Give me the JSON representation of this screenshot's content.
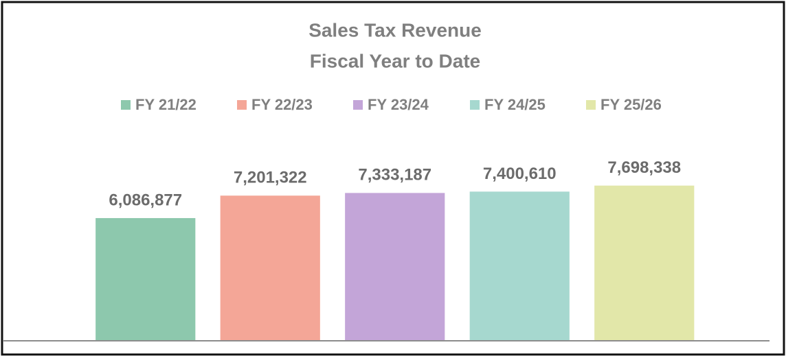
{
  "chart_data": {
    "type": "bar",
    "title": "Sales Tax Revenue",
    "subtitle": "Fiscal Year to Date",
    "series": [
      {
        "name": "FY 21/22",
        "color": "#8dc8ad",
        "values": [
          6086877
        ],
        "value_labels": [
          "6,086,877"
        ]
      },
      {
        "name": "FY 22/23",
        "color": "#f4a697",
        "values": [
          7201322
        ],
        "value_labels": [
          "7,201,322"
        ]
      },
      {
        "name": "FY 23/24",
        "color": "#c3a5d8",
        "values": [
          7333187
        ],
        "value_labels": [
          "7,333,187"
        ]
      },
      {
        "name": "FY 24/25",
        "color": "#a6d8cf",
        "values": [
          7400610
        ],
        "value_labels": [
          "7,400,610"
        ]
      },
      {
        "name": "FY 25/26",
        "color": "#e2e7a9",
        "values": [
          7698338
        ],
        "value_labels": [
          "7,698,338"
        ]
      }
    ],
    "ylim": [
      0,
      10000000
    ],
    "grid": false,
    "legend": "top"
  }
}
